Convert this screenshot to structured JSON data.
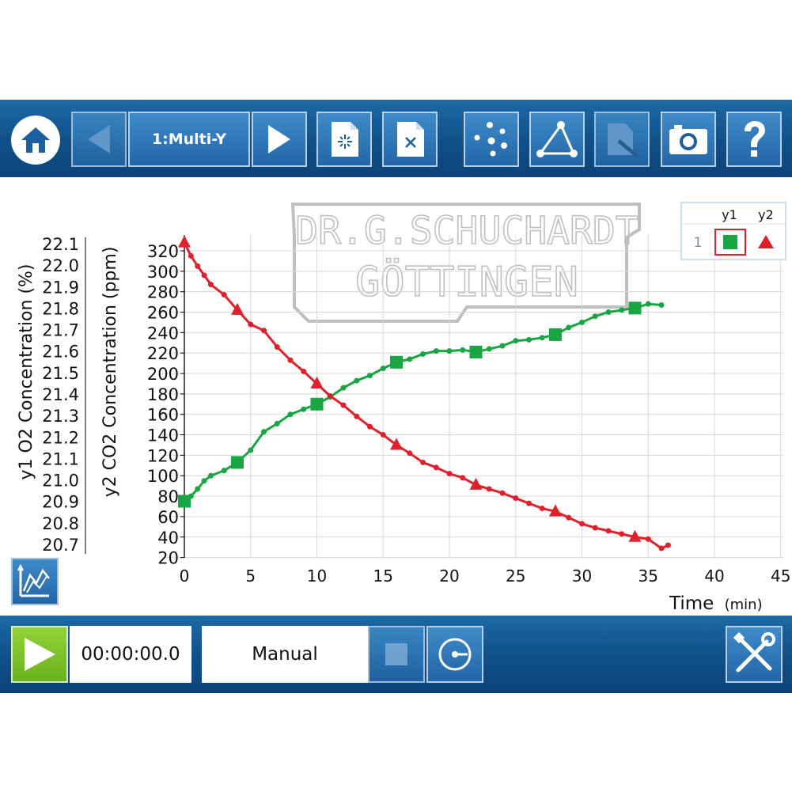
{
  "toolbar": {
    "experiment_label": "1:Multi-Y"
  },
  "legend": {
    "row_index": "1",
    "columns": [
      "y1",
      "y2"
    ]
  },
  "watermark": {
    "line1": "DR.G.SCHUCHARDT",
    "line2": "GÖTTINGEN"
  },
  "footer": {
    "timer": "00:00:00.0",
    "mode": "Manual"
  },
  "colors": {
    "accent": "#1a5f9e",
    "series_y1": "#18a544",
    "series_y2": "#e0202a",
    "play_green": "#7fc324"
  },
  "icons": [
    "home-icon",
    "prev-arrow-icon",
    "next-arrow-icon",
    "new-file-icon",
    "delete-file-icon",
    "data-points-icon",
    "triangle-graph-icon",
    "edit-document-icon",
    "camera-icon",
    "help-icon",
    "chart-options-icon",
    "play-icon",
    "stop-icon",
    "sampling-icon",
    "settings-tools-icon"
  ],
  "chart_data": {
    "type": "line",
    "xlabel": "Time",
    "xunit": "(min)",
    "xlim": [
      -1.5,
      45
    ],
    "xticks": [
      0,
      5,
      10,
      15,
      20,
      25,
      30,
      35,
      40,
      45
    ],
    "y1_label": "y1 O2 Concentration (%)",
    "y1_ticks": [
      "22.1",
      "22.0",
      "21.9",
      "21.8",
      "21.7",
      "21.6",
      "21.5",
      "21.4",
      "21.3",
      "21.2",
      "21.1",
      "21.0",
      "20.9",
      "20.8",
      "20.7"
    ],
    "y2_label": "y2 CO2 Concentration (ppm)",
    "y2_ticks": [
      "320",
      "300",
      "280",
      "260",
      "240",
      "220",
      "200",
      "180",
      "160",
      "140",
      "120",
      "100",
      "80",
      "60",
      "40",
      "20"
    ],
    "y2lim": [
      20,
      330
    ],
    "grid": true,
    "series": [
      {
        "name": "y1",
        "marker": "square",
        "x": [
          0,
          0.5,
          1,
          1.5,
          2,
          3,
          4,
          5,
          6,
          7,
          8,
          9,
          10,
          11,
          12,
          13,
          14,
          15,
          16,
          17,
          18,
          19,
          20,
          21,
          22,
          23,
          24,
          25,
          26,
          27,
          28,
          29,
          30,
          31,
          32,
          33,
          34,
          35,
          36
        ],
        "y": [
          75,
          80,
          87,
          95,
          100,
          105,
          113,
          125,
          143,
          151,
          160,
          165,
          170,
          177,
          186,
          193,
          198,
          205,
          211,
          214,
          219,
          222,
          222,
          223,
          221,
          224,
          227,
          232,
          233,
          235,
          238,
          245,
          250,
          256,
          260,
          262,
          264,
          268,
          267
        ]
      },
      {
        "name": "y2",
        "marker": "triangle",
        "x": [
          0,
          0.5,
          1,
          1.5,
          2,
          3,
          4,
          5,
          6,
          7,
          8,
          9,
          10,
          11,
          12,
          13,
          14,
          15,
          16,
          17,
          18,
          19,
          20,
          21,
          22,
          23,
          24,
          25,
          26,
          27,
          28,
          29,
          30,
          31,
          32,
          33,
          34,
          35,
          36,
          36.5
        ],
        "y": [
          328,
          315,
          305,
          296,
          287,
          277,
          262,
          248,
          242,
          226,
          213,
          202,
          190,
          178,
          169,
          158,
          148,
          140,
          130,
          122,
          113,
          108,
          102,
          98,
          91,
          87,
          83,
          78,
          73,
          68,
          65,
          59,
          53,
          49,
          46,
          43,
          40,
          38,
          29,
          32
        ]
      }
    ]
  }
}
